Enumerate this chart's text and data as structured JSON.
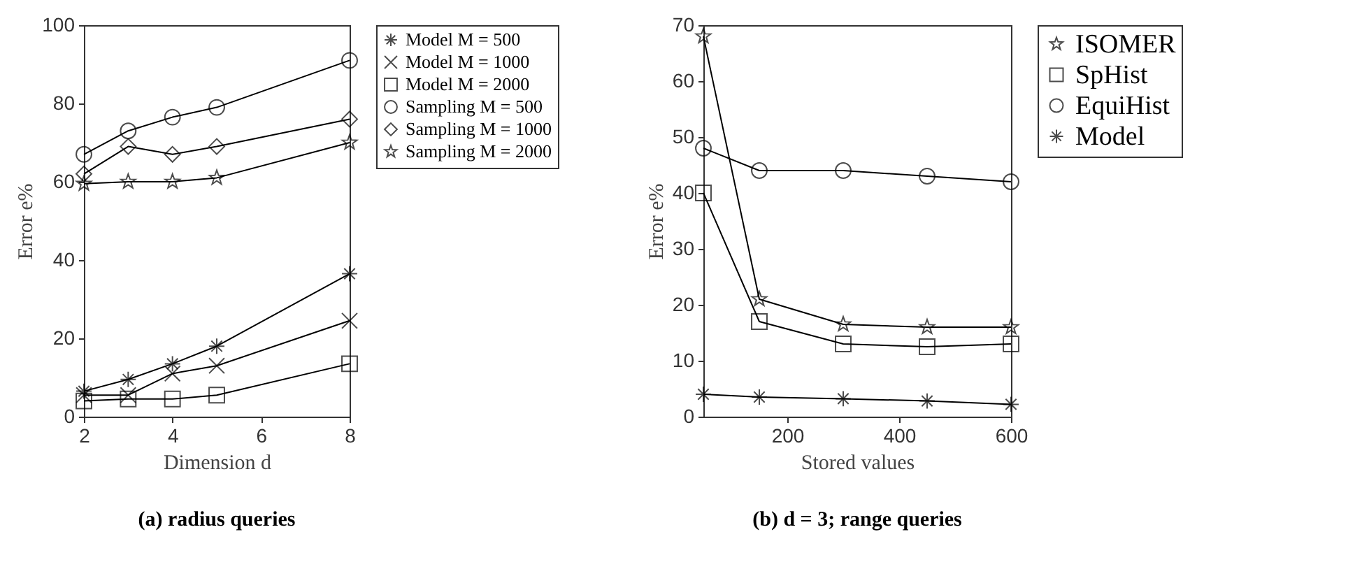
{
  "chart_data": [
    {
      "type": "line",
      "title": "(a) radius queries",
      "xlabel": "Dimension d",
      "ylabel": "Error e%",
      "x": [
        2,
        3,
        4,
        5,
        8
      ],
      "xlim": [
        2,
        8
      ],
      "xticks": [
        2,
        4,
        6,
        8
      ],
      "ylim": [
        0,
        100
      ],
      "yticks": [
        0,
        20,
        40,
        60,
        80,
        100
      ],
      "legend": "right",
      "line_style": "solid",
      "series": [
        {
          "name": "Model M = 500",
          "color": "#000000",
          "marker": "cross",
          "values": [
            6.5,
            9.5,
            13.5,
            18,
            36.5
          ]
        },
        {
          "name": "Model M = 1000",
          "color": "#000000",
          "marker": "cross",
          "values": [
            5.5,
            5.5,
            11,
            13,
            24.5
          ]
        },
        {
          "name": "Model M = 2000",
          "color": "#000000",
          "marker": "square",
          "values": [
            4,
            4.5,
            4.5,
            5.5,
            13.5
          ]
        },
        {
          "name": "Sampling M = 500",
          "color": "#000000",
          "marker": "circle",
          "values": [
            67,
            73,
            76.5,
            79,
            91
          ]
        },
        {
          "name": "Sampling M = 1000",
          "color": "#000000",
          "marker": "diamond",
          "values": [
            62,
            69,
            67,
            69,
            76
          ]
        },
        {
          "name": "Sampling M = 2000",
          "color": "#000000",
          "marker": "star",
          "values": [
            59.5,
            60,
            60,
            61,
            70
          ]
        }
      ]
    },
    {
      "type": "line",
      "title": "(b) d = 3; range queries",
      "xlabel": "Stored values",
      "ylabel": "Error e%",
      "x": [
        50,
        150,
        300,
        450,
        600
      ],
      "xlim": [
        50,
        600
      ],
      "xticks": [
        200,
        400,
        600
      ],
      "ylim": [
        0,
        70
      ],
      "yticks": [
        0,
        10,
        20,
        30,
        40,
        50,
        60,
        70
      ],
      "legend": "right",
      "line_style": "solid",
      "series": [
        {
          "name": "ISOMER",
          "color": "#000000",
          "marker": "star",
          "values": [
            68,
            21,
            16.5,
            16,
            16
          ]
        },
        {
          "name": "SpHist",
          "color": "#000000",
          "marker": "square",
          "values": [
            40,
            17,
            13,
            12.5,
            13
          ]
        },
        {
          "name": "EquiHist",
          "color": "#000000",
          "marker": "circle",
          "values": [
            48,
            44,
            44,
            43,
            42
          ]
        },
        {
          "name": "Model",
          "color": "#000000",
          "marker": "cross",
          "values": [
            4,
            3.5,
            3.2,
            2.8,
            2.2
          ]
        }
      ]
    }
  ]
}
